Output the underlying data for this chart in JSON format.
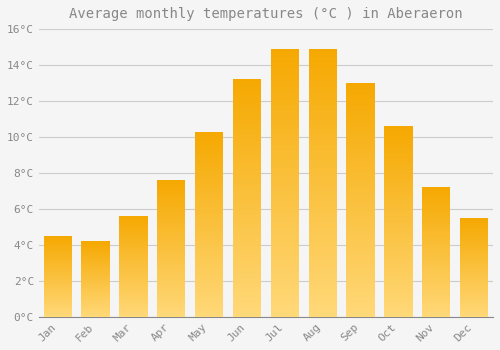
{
  "title": "Average monthly temperatures (°C ) in Aberaeron",
  "months": [
    "Jan",
    "Feb",
    "Mar",
    "Apr",
    "May",
    "Jun",
    "Jul",
    "Aug",
    "Sep",
    "Oct",
    "Nov",
    "Dec"
  ],
  "values": [
    4.5,
    4.2,
    5.6,
    7.6,
    10.3,
    13.2,
    14.9,
    14.9,
    13.0,
    10.6,
    7.2,
    5.5
  ],
  "bar_color_dark": "#F5A800",
  "bar_color_light": "#FFD878",
  "background_color": "#F5F5F5",
  "grid_color": "#CCCCCC",
  "text_color": "#888888",
  "title_color": "#888888",
  "ylim": [
    0,
    16
  ],
  "ytick_step": 2,
  "title_fontsize": 10,
  "tick_fontsize": 8,
  "bar_width": 0.75
}
